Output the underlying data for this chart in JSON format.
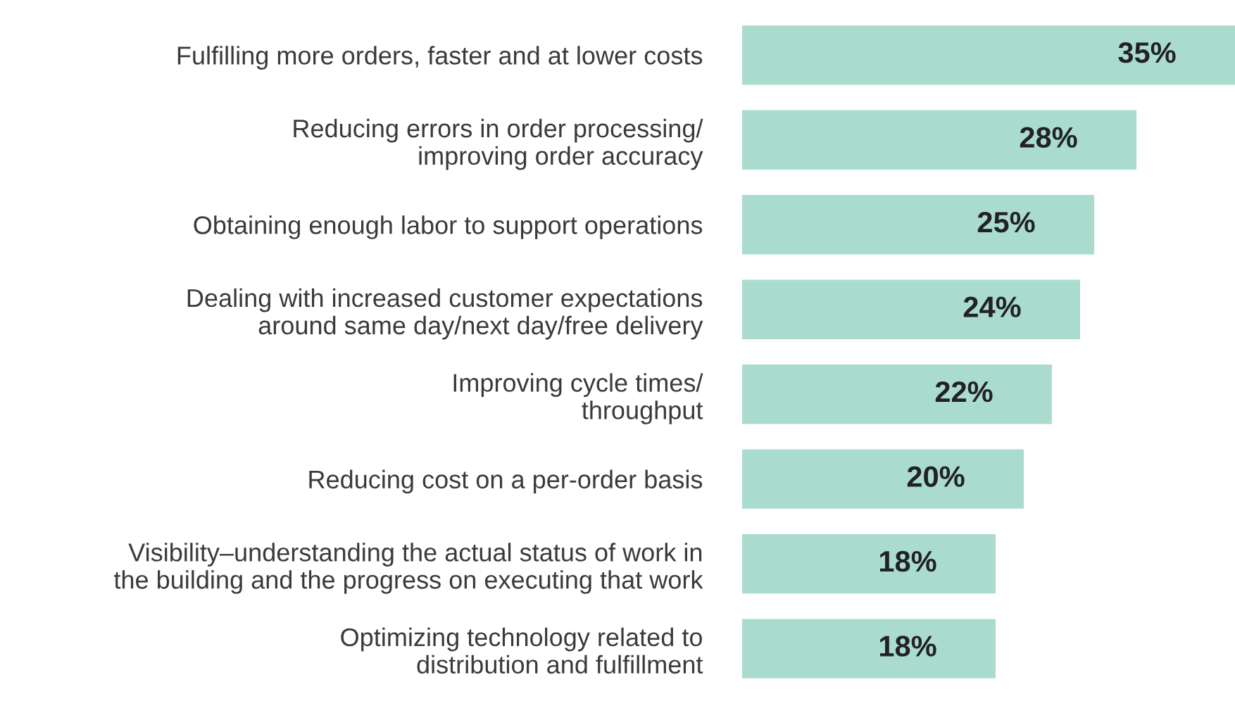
{
  "chart_data": {
    "type": "bar",
    "orientation": "horizontal",
    "grid": false,
    "legend": false,
    "value_labels": [
      "35%",
      "28%",
      "25%",
      "24%",
      "22%",
      "20%",
      "18%",
      "18%"
    ],
    "categories": [
      "Fulfilling more orders, faster and at lower costs",
      "Reducing errors in order processing/\nimproving order accuracy",
      "Obtaining enough labor to support operations",
      "Dealing with increased customer expectations\naround same day/next day/free delivery",
      "Improving cycle times/\nthroughput",
      "Reducing cost on a per-order basis",
      "Visibility–understanding the actual status of work in\nthe building and the progress on executing that work",
      "Optimizing technology related to\ndistribution and fulfillment"
    ],
    "values": [
      35,
      28,
      25,
      24,
      22,
      20,
      18,
      18
    ],
    "color": "#a9dccf"
  }
}
